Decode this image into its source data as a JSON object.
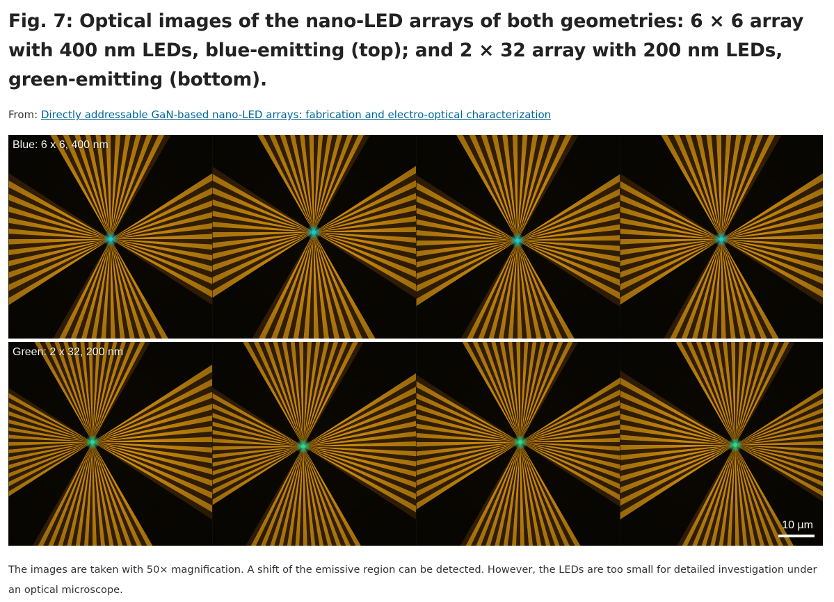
{
  "figure": {
    "title": "Fig. 7: Optical images of the nano-LED arrays of both geometries: 6 × 6 array with 400 nm LEDs, blue-emitting (top); and 2 × 32 array with 200 nm LEDs, green-emitting (bottom).",
    "source_prefix": "From: ",
    "source_link_text": "Directly addressable GaN-based nano-LED arrays: fabrication and electro-optical characterization",
    "panels": {
      "top_label": "Blue: 6 x 6, 400 nm",
      "bottom_label": "Green: 2 x 32, 200 nm",
      "scale_bar_label": "10 µm"
    },
    "caption": "The images are taken with 50× magnification. A shift of the emissive region can be detected. However, the LEDs are too small for detailed investigation under an optical microscope."
  },
  "colors": {
    "link": "#006699",
    "metal_stripe": "#d9950f",
    "metal_gap": "#3d2405",
    "background_dark": "#0b0803",
    "emission_blue": "#19c9c9",
    "emission_green": "#28d890"
  }
}
